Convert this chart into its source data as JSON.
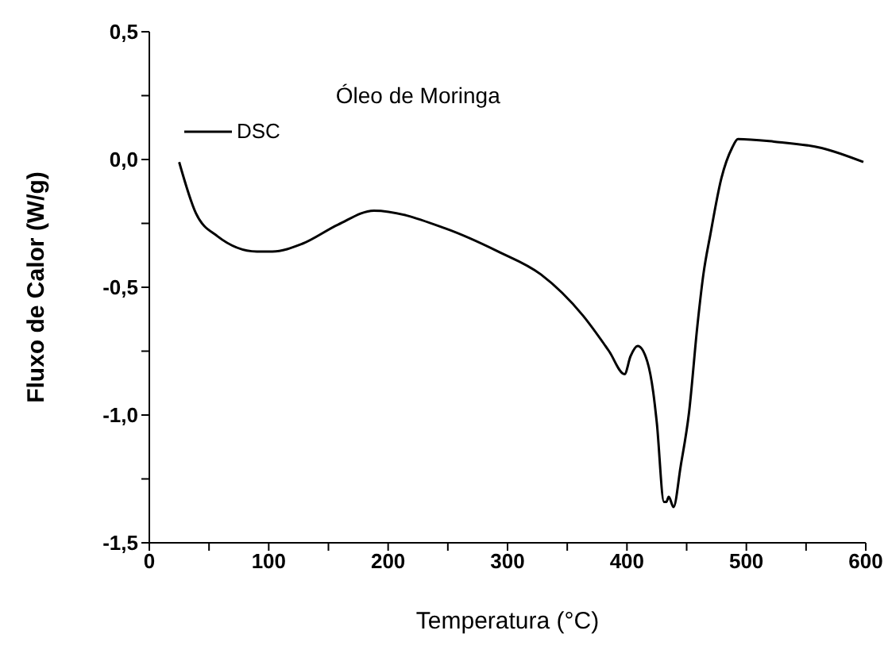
{
  "chart_data": {
    "type": "line",
    "title": "Óleo de Moringa",
    "xlabel": "Temperatura (°C)",
    "ylabel": "Fluxo de Calor (W/g)",
    "xlim": [
      0,
      600
    ],
    "xticks": [
      0,
      {
        "value": 50,
        "label": null
      },
      100,
      {
        "value": 150,
        "label": null
      },
      200,
      {
        "value": 250,
        "label": null
      },
      300,
      {
        "value": 350,
        "label": null
      },
      400,
      {
        "value": 450,
        "label": null
      },
      500,
      {
        "value": 550,
        "label": null
      },
      600
    ],
    "ylim": [
      -1.5,
      0.5
    ],
    "yticks": [
      {
        "value": -1.5,
        "label": "-1,5"
      },
      {
        "value": -1.25,
        "label": null
      },
      {
        "value": -1.0,
        "label": "-1,0"
      },
      {
        "value": -0.75,
        "label": null
      },
      {
        "value": -0.5,
        "label": "-0,5"
      },
      {
        "value": -0.25,
        "label": null
      },
      {
        "value": 0,
        "label": "0,0"
      },
      {
        "value": 0.25,
        "label": null
      },
      {
        "value": 0.5,
        "label": "0,5"
      }
    ],
    "legend": "top left",
    "grid": false,
    "marker": "none",
    "line_style": "solid",
    "x": [
      25,
      39,
      57,
      90,
      103,
      128,
      158,
      188,
      248,
      292,
      328,
      363,
      385,
      398,
      403,
      409,
      417,
      422,
      425,
      431,
      433,
      435,
      439,
      445,
      452,
      459,
      464,
      470,
      479,
      488,
      493,
      523,
      563,
      598
    ],
    "series": [
      {
        "name": "DSC",
        "color": "#000000",
        "values": [
          -0.01,
          -0.21,
          -0.3,
          -0.36,
          -0.36,
          -0.33,
          -0.255,
          -0.2,
          -0.27,
          -0.36,
          -0.45,
          -0.61,
          -0.75,
          -0.84,
          -0.77,
          -0.73,
          -0.79,
          -0.91,
          -1.03,
          -1.34,
          -1.34,
          -1.32,
          -1.36,
          -1.2,
          -0.99,
          -0.65,
          -0.45,
          -0.29,
          -0.075,
          0.045,
          0.08,
          0.07,
          0.045,
          -0.01
        ]
      }
    ]
  }
}
